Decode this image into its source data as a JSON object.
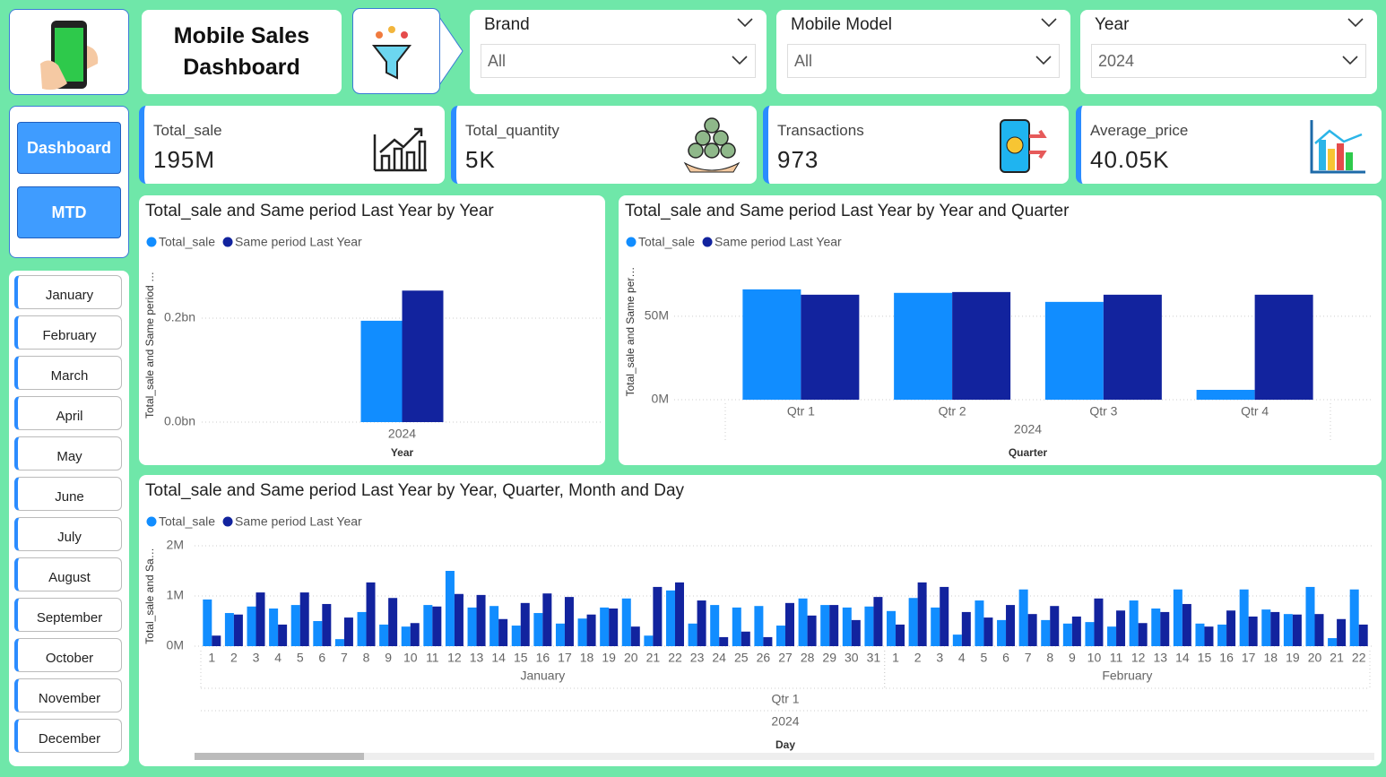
{
  "header": {
    "title": "Mobile Sales Dashboard"
  },
  "filters": [
    {
      "label": "Brand",
      "value": "All"
    },
    {
      "label": "Mobile Model",
      "value": "All"
    },
    {
      "label": "Year",
      "value": "2024"
    }
  ],
  "nav": {
    "buttons": [
      "Dashboard",
      "MTD"
    ],
    "months": [
      "January",
      "February",
      "March",
      "April",
      "May",
      "June",
      "July",
      "August",
      "September",
      "October",
      "November",
      "December"
    ]
  },
  "kpis": [
    {
      "label": "Total_sale",
      "value": "195M"
    },
    {
      "label": "Total_quantity",
      "value": "5K"
    },
    {
      "label": "Transactions",
      "value": "973"
    },
    {
      "label": "Average_price",
      "value": "40.05K"
    }
  ],
  "chart_data": [
    {
      "type": "bar",
      "title": "Total_sale and Same period Last Year by Year",
      "ylabel": "Total_sale and Same period …",
      "xlabel": "Year",
      "categories": [
        "2024"
      ],
      "series": [
        {
          "name": "Total_sale",
          "color": "#118dff",
          "values": [
            0.195
          ]
        },
        {
          "name": "Same period Last Year",
          "color": "#12239e",
          "values": [
            0.253
          ]
        }
      ],
      "ylim": [
        0,
        0.3
      ],
      "yticks": [
        {
          "value": 0,
          "label": "0.0bn"
        },
        {
          "value": 0.2,
          "label": "0.2bn"
        }
      ],
      "grid": true,
      "legend": "top-left"
    },
    {
      "type": "bar",
      "title": "Total_sale and Same period Last Year by Year and Quarter",
      "ylabel": "Total_sale and Same per…",
      "xlabel": "Quarter",
      "x_group": "2024",
      "categories": [
        "Qtr 1",
        "Qtr 2",
        "Qtr 3",
        "Qtr 4"
      ],
      "series": [
        {
          "name": "Total_sale",
          "color": "#118dff",
          "values": [
            66.1,
            64.0,
            58.6,
            5.9
          ]
        },
        {
          "name": "Same period Last Year",
          "color": "#12239e",
          "values": [
            62.9,
            64.5,
            62.9,
            62.9
          ]
        }
      ],
      "ylim": [
        0,
        80
      ],
      "yticks": [
        {
          "value": 0,
          "label": "0M"
        },
        {
          "value": 50,
          "label": "50M"
        }
      ],
      "grid": true,
      "legend": "top-left"
    },
    {
      "type": "bar",
      "title": "Total_sale and Same period Last Year by Year, Quarter, Month and Day",
      "ylabel": "Total_sale and Sa…",
      "xlabel": "Day",
      "quarter": "Qtr 1",
      "year": "2024",
      "groups": [
        {
          "label": "January",
          "categories": [
            "1",
            "2",
            "3",
            "4",
            "5",
            "6",
            "7",
            "8",
            "9",
            "10",
            "11",
            "12",
            "13",
            "14",
            "15",
            "16",
            "17",
            "18",
            "19",
            "20",
            "21",
            "22",
            "23",
            "24",
            "25",
            "26",
            "27",
            "28",
            "29",
            "30",
            "31"
          ]
        },
        {
          "label": "February",
          "categories": [
            "1",
            "2",
            "3",
            "4",
            "5",
            "6",
            "7",
            "8",
            "9",
            "10",
            "11",
            "12",
            "13",
            "14",
            "15",
            "16",
            "17",
            "18",
            "19",
            "20",
            "21",
            "22"
          ]
        }
      ],
      "series": [
        {
          "name": "Total_sale",
          "color": "#118dff",
          "values": [
            0.93,
            0.66,
            0.79,
            0.75,
            0.82,
            0.5,
            0.14,
            0.68,
            0.43,
            0.39,
            0.82,
            1.5,
            0.77,
            0.8,
            0.41,
            0.66,
            0.45,
            0.55,
            0.77,
            0.95,
            0.21,
            1.11,
            0.45,
            0.82,
            0.77,
            0.8,
            0.41,
            0.95,
            0.82,
            0.77,
            0.79,
            0.7,
            0.96,
            0.77,
            0.23,
            0.91,
            0.52,
            1.13,
            0.52,
            0.45,
            0.48,
            0.39,
            0.91,
            0.75,
            1.13,
            0.45,
            0.43,
            1.13,
            0.73,
            0.64,
            1.18,
            0.16,
            1.13
          ]
        },
        {
          "name": "Same period Last Year",
          "color": "#12239e",
          "values": [
            0.21,
            0.63,
            1.07,
            0.43,
            1.07,
            0.84,
            0.57,
            1.27,
            0.96,
            0.46,
            0.79,
            1.04,
            1.02,
            0.54,
            0.86,
            1.05,
            0.98,
            0.63,
            0.75,
            0.39,
            1.18,
            1.27,
            0.91,
            0.18,
            0.29,
            0.18,
            0.86,
            0.61,
            0.82,
            0.52,
            0.98,
            0.43,
            1.27,
            1.18,
            0.68,
            0.57,
            0.82,
            0.64,
            0.8,
            0.59,
            0.95,
            0.71,
            0.46,
            0.68,
            0.84,
            0.39,
            0.71,
            0.59,
            0.68,
            0.63,
            0.64,
            0.54,
            0.43
          ]
        }
      ],
      "ylim": [
        0,
        2
      ],
      "yticks": [
        {
          "value": 0,
          "label": "0M"
        },
        {
          "value": 1,
          "label": "1M"
        },
        {
          "value": 2,
          "label": "2M"
        }
      ],
      "grid": true,
      "legend": "top-left"
    }
  ]
}
